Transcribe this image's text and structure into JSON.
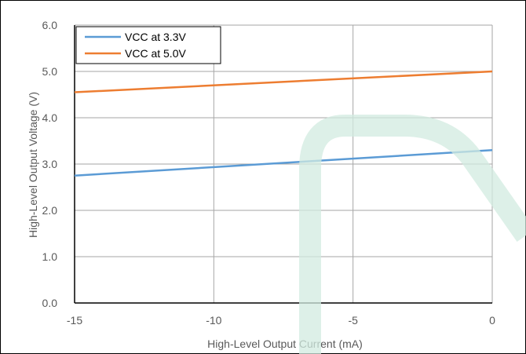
{
  "chart_data": {
    "type": "line",
    "title": "",
    "xlabel": "High-Level Output Current (mA)",
    "ylabel": "High-Level Output Voltage (V)",
    "xlim": [
      -15,
      0
    ],
    "ylim": [
      0,
      6
    ],
    "xticks": [
      -15,
      -10,
      -5,
      0
    ],
    "xtick_labels": [
      "-15",
      "-10",
      "-5",
      "0"
    ],
    "yticks": [
      0,
      1,
      2,
      3,
      4,
      5,
      6
    ],
    "ytick_labels": [
      "0.0",
      "1.0",
      "2.0",
      "3.0",
      "4.0",
      "5.0",
      "6.0"
    ],
    "grid": true,
    "legend_position": "top-left",
    "series": [
      {
        "name": "VCC at 3.3V",
        "color": "#5B9BD5",
        "x": [
          -15,
          0
        ],
        "y": [
          2.75,
          3.3
        ]
      },
      {
        "name": "VCC at 5.0V",
        "color": "#ED7D31",
        "x": [
          -15,
          0
        ],
        "y": [
          4.55,
          5.0
        ]
      }
    ]
  }
}
